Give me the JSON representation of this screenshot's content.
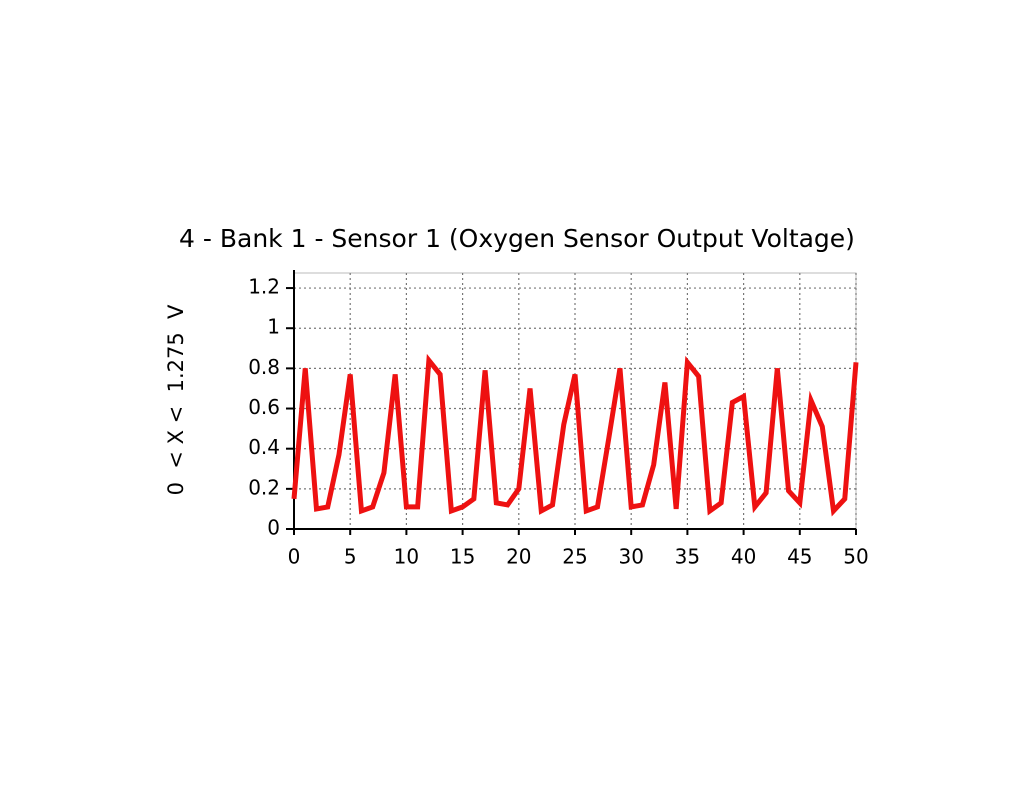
{
  "chart_data": {
    "type": "line",
    "title": "4 - Bank 1 - Sensor 1 (Oxygen Sensor Output Voltage)",
    "y_label": "0  < X <  1.275  V",
    "x": [
      0,
      1,
      2,
      3,
      4,
      5,
      6,
      7,
      8,
      9,
      10,
      11,
      12,
      13,
      14,
      15,
      16,
      17,
      18,
      19,
      20,
      21,
      22,
      23,
      24,
      25,
      26,
      27,
      28,
      29,
      30,
      31,
      32,
      33,
      34,
      35,
      36,
      37,
      38,
      39,
      40,
      41,
      42,
      43,
      44,
      45,
      46,
      47,
      48,
      49,
      50
    ],
    "series": [
      {
        "name": "Oxygen Sensor Output Voltage",
        "color": "#ee1111",
        "values": [
          0.15,
          0.8,
          0.1,
          0.11,
          0.37,
          0.77,
          0.09,
          0.11,
          0.28,
          0.77,
          0.11,
          0.11,
          0.84,
          0.77,
          0.09,
          0.11,
          0.15,
          0.79,
          0.13,
          0.12,
          0.2,
          0.7,
          0.09,
          0.12,
          0.52,
          0.77,
          0.09,
          0.11,
          0.45,
          0.8,
          0.11,
          0.12,
          0.32,
          0.73,
          0.1,
          0.83,
          0.76,
          0.09,
          0.13,
          0.63,
          0.66,
          0.11,
          0.18,
          0.8,
          0.19,
          0.13,
          0.64,
          0.51,
          0.09,
          0.15,
          0.83
        ]
      }
    ],
    "xlim": [
      0,
      50
    ],
    "xticks": [
      0,
      5,
      10,
      15,
      20,
      25,
      30,
      35,
      40,
      45,
      50
    ],
    "ylim": [
      0,
      1.275
    ],
    "yticks": [
      0,
      0.2,
      0.4,
      0.6,
      0.8,
      1,
      1.2
    ],
    "grid": true
  }
}
